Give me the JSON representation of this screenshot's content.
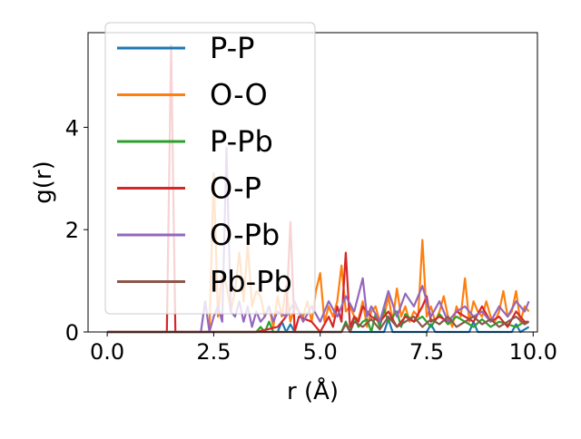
{
  "chart_data": {
    "type": "line",
    "xlabel": "r (Å)",
    "ylabel": "g(r)",
    "xlim": [
      -0.45,
      10.1
    ],
    "ylim": [
      0,
      5.85
    ],
    "xticks": [
      0.0,
      2.5,
      5.0,
      7.5,
      10.0
    ],
    "xtick_labels": [
      "0.0",
      "2.5",
      "5.0",
      "7.5",
      "10.0"
    ],
    "yticks": [
      0,
      2,
      4
    ],
    "ytick_labels": [
      "0",
      "2",
      "4"
    ],
    "grid": false,
    "legend_position": "upper-left",
    "series": [
      {
        "name": "P-P",
        "color": "#1f77b4",
        "x": [
          0.0,
          1.0,
          2.0,
          3.0,
          4.0,
          4.1,
          4.2,
          4.3,
          4.4,
          4.5,
          5.0,
          5.5,
          5.6,
          5.7,
          6.0,
          6.5,
          6.6,
          6.7,
          7.0,
          7.5,
          7.6,
          7.7,
          8.0,
          8.5,
          8.6,
          8.7,
          9.0,
          9.5,
          9.6,
          9.7,
          9.9
        ],
        "y": [
          0,
          0,
          0,
          0,
          0,
          0.2,
          0,
          0.15,
          0,
          0,
          0,
          0,
          0.2,
          0,
          0,
          0,
          0.25,
          0,
          0,
          0,
          0.15,
          0,
          0,
          0,
          0.2,
          0,
          0,
          0,
          0.15,
          0,
          0.1
        ]
      },
      {
        "name": "O-O",
        "color": "#ff7f0e",
        "x": [
          0.0,
          0.5,
          1.0,
          1.5,
          2.0,
          2.4,
          2.5,
          2.6,
          2.7,
          2.8,
          2.9,
          3.0,
          3.1,
          3.2,
          3.3,
          3.4,
          3.5,
          3.6,
          3.7,
          3.8,
          3.9,
          4.0,
          4.1,
          4.2,
          4.3,
          4.4,
          4.5,
          4.6,
          4.7,
          4.8,
          4.9,
          5.0,
          5.1,
          5.2,
          5.3,
          5.4,
          5.5,
          5.6,
          5.7,
          5.8,
          5.9,
          6.0,
          6.1,
          6.2,
          6.3,
          6.4,
          6.5,
          6.6,
          6.7,
          6.8,
          6.9,
          7.0,
          7.1,
          7.2,
          7.3,
          7.4,
          7.5,
          7.6,
          7.7,
          7.8,
          7.9,
          8.0,
          8.1,
          8.2,
          8.3,
          8.4,
          8.5,
          8.6,
          8.7,
          8.8,
          8.9,
          9.0,
          9.1,
          9.2,
          9.3,
          9.4,
          9.5,
          9.6,
          9.7,
          9.8,
          9.9
        ],
        "y": [
          0,
          0,
          0,
          0,
          0,
          0,
          3.1,
          0.3,
          1.2,
          0.9,
          0.4,
          0.8,
          1.55,
          0.6,
          1.7,
          0.5,
          0.8,
          0.7,
          0.3,
          0.5,
          0.1,
          0.7,
          0.3,
          0.9,
          0.2,
          0.5,
          0.4,
          0.3,
          0.6,
          0.2,
          0.8,
          1.15,
          0.2,
          0.5,
          0.3,
          0.6,
          1.3,
          0.4,
          0.5,
          0.3,
          0.25,
          0.6,
          0.1,
          0.4,
          0.5,
          0.2,
          0.3,
          0.7,
          0.2,
          0.85,
          0.3,
          0.5,
          0.2,
          0.4,
          0.3,
          1.8,
          0.3,
          0.5,
          0.2,
          0.4,
          0.7,
          0.3,
          0.1,
          0.5,
          0.3,
          1.05,
          0.2,
          0.6,
          0.4,
          0.3,
          0.6,
          0.3,
          0.2,
          0.4,
          0.8,
          0.3,
          0.4,
          0.8,
          0.2,
          0.5,
          0.4
        ]
      },
      {
        "name": "P-Pb",
        "color": "#2ca02c",
        "x": [
          0.0,
          1.0,
          2.0,
          3.0,
          3.5,
          3.6,
          3.7,
          3.8,
          3.9,
          4.0,
          4.5,
          5.0,
          5.5,
          5.6,
          5.7,
          5.8,
          5.9,
          6.0,
          6.1,
          6.2,
          6.3,
          6.4,
          6.5,
          6.6,
          6.7,
          6.8,
          6.9,
          7.0,
          7.2,
          7.4,
          7.6,
          7.8,
          8.0,
          8.2,
          8.4,
          8.6,
          8.8,
          9.0,
          9.2,
          9.4,
          9.6,
          9.8
        ],
        "y": [
          0,
          0,
          0,
          0,
          0,
          0.1,
          0,
          0.2,
          0,
          0,
          0,
          0,
          0,
          0.2,
          0,
          0.3,
          0.1,
          0.2,
          0.25,
          0,
          0.35,
          0.1,
          0.45,
          0.2,
          0.3,
          0.4,
          0.1,
          0.35,
          0.2,
          0.3,
          0.1,
          0.35,
          0.15,
          0.3,
          0.2,
          0.1,
          0.25,
          0.1,
          0.2,
          0.15,
          0.1,
          0.2
        ]
      },
      {
        "name": "O-P",
        "color": "#d62728",
        "x": [
          0.0,
          0.5,
          1.0,
          1.4,
          1.5,
          1.6,
          2.0,
          2.5,
          3.0,
          3.5,
          4.0,
          4.2,
          4.3,
          4.4,
          4.5,
          4.8,
          5.0,
          5.2,
          5.3,
          5.4,
          5.5,
          5.6,
          5.7,
          5.8,
          5.9,
          6.0,
          6.2,
          6.4,
          6.6,
          6.8,
          7.0,
          7.2,
          7.4,
          7.5,
          7.6,
          7.8,
          8.0,
          8.2,
          8.4,
          8.6,
          8.8,
          9.0,
          9.2,
          9.4,
          9.6,
          9.8,
          9.9
        ],
        "y": [
          0,
          0,
          0,
          0,
          5.6,
          0,
          0,
          0,
          0,
          0,
          0.1,
          0.3,
          2.15,
          0,
          0.3,
          0.2,
          0,
          0.3,
          0.1,
          0.5,
          0.2,
          1.55,
          0.1,
          0.3,
          0.2,
          0.5,
          0.3,
          0.2,
          0.4,
          0.1,
          0.3,
          0.2,
          0.5,
          0.7,
          0.2,
          0.3,
          0.2,
          0.4,
          0.3,
          0.2,
          0.5,
          0.2,
          0.3,
          0.1,
          0.4,
          0.2,
          0.2
        ]
      },
      {
        "name": "O-Pb",
        "color": "#9467bd",
        "x": [
          0.0,
          1.0,
          2.0,
          2.2,
          2.3,
          2.4,
          2.5,
          2.6,
          2.7,
          2.8,
          2.9,
          3.0,
          3.1,
          3.2,
          3.3,
          3.4,
          3.5,
          3.6,
          3.7,
          3.8,
          3.9,
          4.0,
          4.2,
          4.4,
          4.6,
          4.8,
          5.0,
          5.2,
          5.4,
          5.6,
          5.8,
          6.0,
          6.1,
          6.2,
          6.4,
          6.6,
          6.8,
          7.0,
          7.2,
          7.4,
          7.6,
          7.8,
          8.0,
          8.2,
          8.4,
          8.6,
          8.8,
          9.0,
          9.2,
          9.4,
          9.6,
          9.8,
          9.9
        ],
        "y": [
          0,
          0,
          0,
          0,
          0.6,
          0,
          0.3,
          0.5,
          0.2,
          3.6,
          0.4,
          0.3,
          0.6,
          0.2,
          0.5,
          0.1,
          0.4,
          0.2,
          0.3,
          0.5,
          0.2,
          0.4,
          0.3,
          0.6,
          0.2,
          0.5,
          0.2,
          0.6,
          0.3,
          0.7,
          0.4,
          1.05,
          0.3,
          0.5,
          0.2,
          0.8,
          0.3,
          0.75,
          0.5,
          0.9,
          0.3,
          0.6,
          0.2,
          0.4,
          0.5,
          0.3,
          0.4,
          0.2,
          0.5,
          0.3,
          0.6,
          0.4,
          0.6
        ]
      },
      {
        "name": "Pb-Pb",
        "color": "#8c564b",
        "x": [
          0.0,
          1.0,
          2.0,
          3.0,
          4.0,
          4.5,
          5.0,
          5.5,
          5.6,
          5.7,
          5.8,
          6.0,
          6.2,
          6.4,
          6.6,
          6.8,
          7.0,
          7.2,
          7.4,
          7.6,
          7.8,
          8.0,
          8.2,
          8.4,
          8.6,
          8.8,
          9.0,
          9.2,
          9.4,
          9.6,
          9.8,
          9.9
        ],
        "y": [
          0,
          0,
          0,
          0,
          0,
          0,
          0,
          0,
          0.15,
          0,
          0.2,
          0.1,
          0.25,
          0.05,
          0.3,
          0.1,
          0.2,
          0.3,
          0.1,
          0.25,
          0.15,
          0.3,
          0.1,
          0.2,
          0.3,
          0.15,
          0.25,
          0.1,
          0.2,
          0.3,
          0.15,
          0.2
        ]
      }
    ]
  }
}
